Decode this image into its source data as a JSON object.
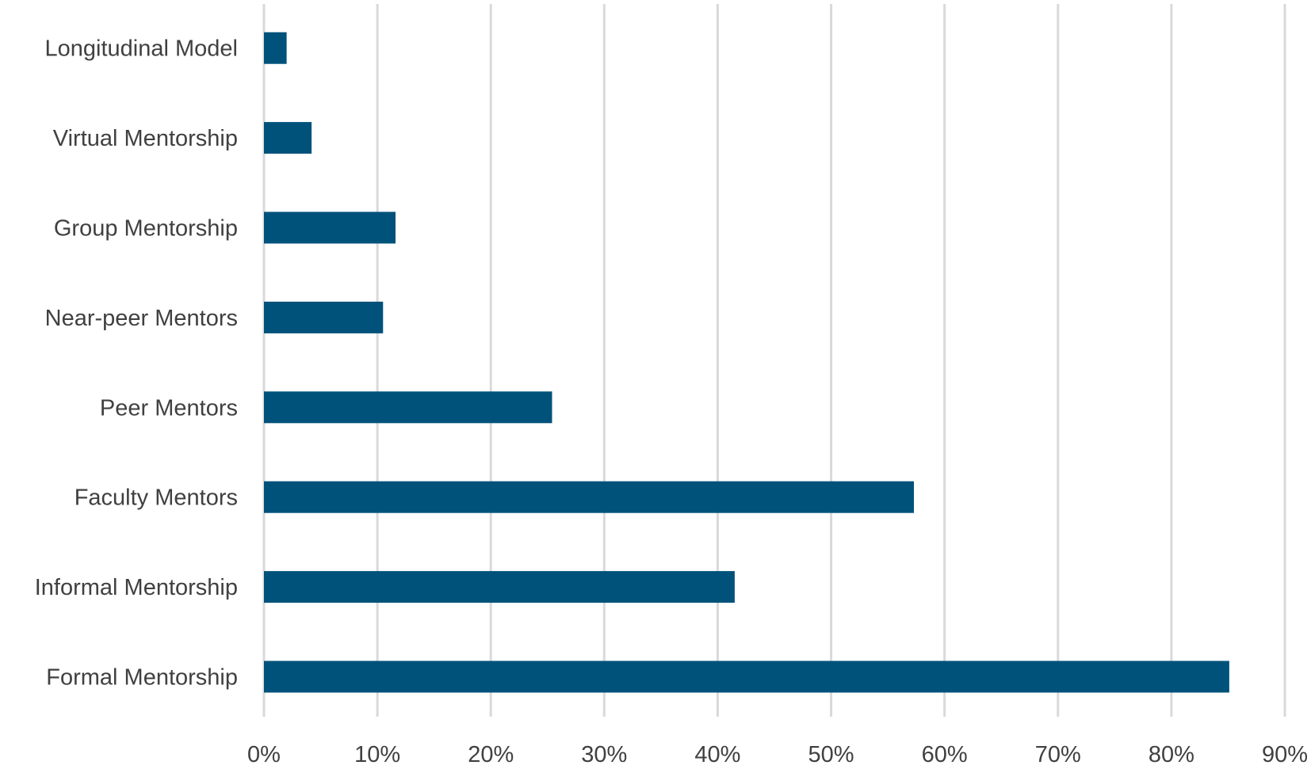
{
  "chart_data": {
    "type": "bar",
    "orientation": "horizontal",
    "categories": [
      "Longitudinal Model",
      "Virtual Mentorship",
      "Group Mentorship",
      "Near-peer Mentors",
      "Peer Mentors",
      "Faculty Mentors",
      "Informal Mentorship",
      "Formal Mentorship"
    ],
    "values": [
      2,
      4.2,
      11.6,
      10.5,
      25.4,
      57.3,
      41.5,
      85.1
    ],
    "xlim": [
      0,
      90
    ],
    "xticks": [
      0,
      10,
      20,
      30,
      40,
      50,
      60,
      70,
      80,
      90
    ],
    "xtick_labels": [
      "0%",
      "10%",
      "20%",
      "30%",
      "40%",
      "50%",
      "60%",
      "70%",
      "80%",
      "90%"
    ],
    "title": "",
    "xlabel": "",
    "ylabel": "",
    "grid": "vertical",
    "legend": "none",
    "bar_color": "#00527a"
  }
}
